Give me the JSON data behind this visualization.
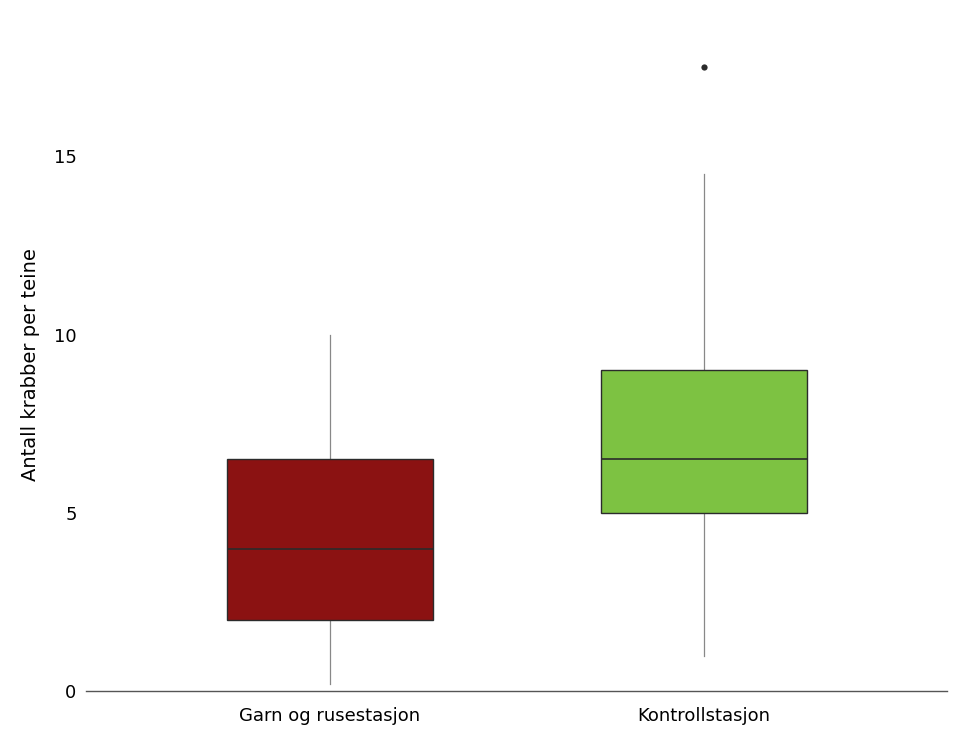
{
  "categories": [
    "Garn og rusestasjon",
    "Kontrollstasjon"
  ],
  "box1": {
    "whisker_low": 0.2,
    "q1": 2.0,
    "median": 4.0,
    "q3": 6.5,
    "whisker_high": 10.0,
    "outliers": [],
    "color": "#8B1212",
    "edge_color": "#2b2b2b"
  },
  "box2": {
    "whisker_low": 1.0,
    "q1": 5.0,
    "median": 6.5,
    "q3": 9.0,
    "whisker_high": 14.5,
    "outliers": [
      17.5
    ],
    "color": "#7DC242",
    "edge_color": "#2b2b2b"
  },
  "ylabel": "Antall krabber per teine",
  "xlabel": "",
  "ylim": [
    -0.5,
    18.8
  ],
  "yticks": [
    0,
    5,
    10,
    15
  ],
  "background_color": "#ffffff",
  "box_width": 0.55,
  "whisker_color": "#888888",
  "median_color": "#2b2b2b",
  "outlier_color": "#2b2b2b",
  "ylabel_fontsize": 14,
  "tick_fontsize": 13,
  "xtick_fontsize": 13,
  "positions": [
    1,
    2
  ],
  "xlim": [
    0.35,
    2.65
  ]
}
